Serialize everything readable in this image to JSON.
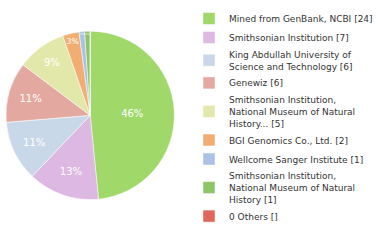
{
  "chart_data": {
    "type": "pie",
    "categories": [
      "Mined from GenBank, NCBI [24]",
      "Smithsonian Institution [7]",
      "King Abdullah University of Science and Technology [6]",
      "Genewiz [6]",
      "Smithsonian Institution, National Museum of Natural History... [5]",
      "BGI Genomics Co., Ltd. [2]",
      "Wellcome Sanger Institute [1]",
      "Smithsonian Institution, National Museum of Natural History [1]",
      "0 Others []"
    ],
    "values": [
      46,
      13,
      11,
      11,
      9,
      3,
      1,
      1,
      0
    ],
    "value_labels": [
      "46%",
      "13%",
      "11%",
      "11%",
      "9%",
      "3%",
      "1%",
      "1%",
      null
    ],
    "colors": [
      "#a0d86a",
      "#dcb8e2",
      "#c9d8e8",
      "#e3a89f",
      "#e2e8a9",
      "#f2ad72",
      "#a9c2e6",
      "#8ec46a",
      "#e0675a"
    ],
    "data_labels": true,
    "legend": "right"
  }
}
